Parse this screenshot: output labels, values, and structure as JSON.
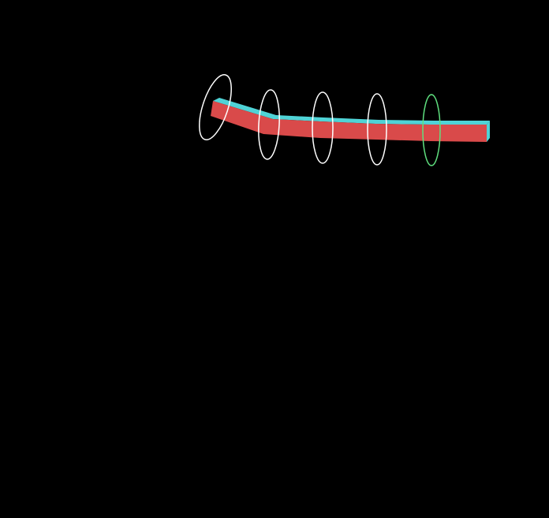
{
  "scene": {
    "background": "#000000",
    "beam": {
      "front_color": "#d94a4a",
      "top_color": "#4fd3d6",
      "segments": 5
    },
    "rings": [
      {
        "id": 1,
        "color": "#ffffff",
        "selected": false
      },
      {
        "id": 2,
        "color": "#ffffff",
        "selected": false
      },
      {
        "id": 3,
        "color": "#ffffff",
        "selected": false
      },
      {
        "id": 4,
        "color": "#ffffff",
        "selected": false
      },
      {
        "id": 5,
        "color": "#5fe07f",
        "selected": true
      }
    ]
  }
}
